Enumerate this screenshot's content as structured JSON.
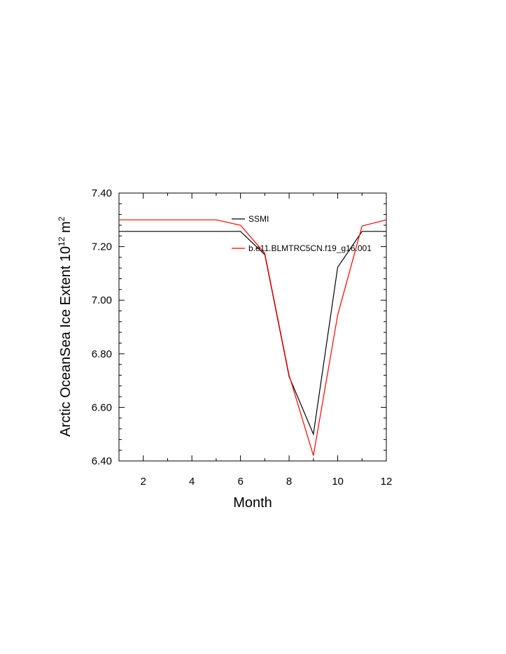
{
  "chart_data": {
    "type": "line",
    "title": "",
    "xlabel": "Month",
    "ylabel": {
      "prefix": "Arctic OceanSea Ice Extent 10",
      "exponent": "12",
      "unit": " m",
      "unit_exponent": "2"
    },
    "xlim": [
      1,
      12
    ],
    "ylim": [
      6.4,
      7.4
    ],
    "x_ticks": [
      2,
      4,
      6,
      8,
      10,
      12
    ],
    "x_tick_labels": [
      "2",
      "4",
      "6",
      "8",
      "10",
      "12"
    ],
    "y_ticks": [
      6.4,
      6.6,
      6.8,
      7.0,
      7.2,
      7.4
    ],
    "y_tick_labels": [
      "6.40",
      "6.60",
      "6.80",
      "7.00",
      "7.20",
      "7.40"
    ],
    "grid": false,
    "legend_position": "top-center",
    "x": [
      1,
      2,
      3,
      4,
      5,
      6,
      7,
      8,
      9,
      10,
      11,
      12
    ],
    "series": [
      {
        "name": "SSMI",
        "color": "#000000",
        "values": [
          7.257,
          7.257,
          7.257,
          7.257,
          7.257,
          7.257,
          7.17,
          6.715,
          6.5,
          7.123,
          7.257,
          7.257
        ]
      },
      {
        "name": "b.e11.BLMTRC5CN.f19_g16.001",
        "color": "#ff0000",
        "values": [
          7.3,
          7.3,
          7.3,
          7.3,
          7.3,
          7.28,
          7.175,
          6.72,
          6.42,
          6.945,
          7.277,
          7.3
        ]
      }
    ]
  }
}
